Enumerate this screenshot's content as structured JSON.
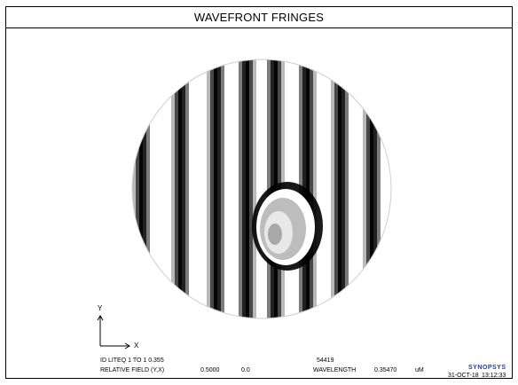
{
  "window": {
    "title": "WAVEFRONT FRINGES"
  },
  "axes": {
    "y_label": "Y",
    "x_label": "X"
  },
  "info": {
    "line1_label": "ID LITEQ 1 TO 1 0.355",
    "line1_value": "54419",
    "line2_label": "RELATIVE FIELD (Y,X)",
    "field_y": "0.5000",
    "field_x": "0.0",
    "wavelength_label": "WAVELENGTH",
    "wavelength_value": "0.35470",
    "wavelength_unit": "uM",
    "brand": "SYNOPSYS",
    "date": "31-OCT-18",
    "time": "13:12:33"
  },
  "icons": {
    "pupil": "fringe-pupil-disk",
    "axes": "xy-axes-icon"
  }
}
